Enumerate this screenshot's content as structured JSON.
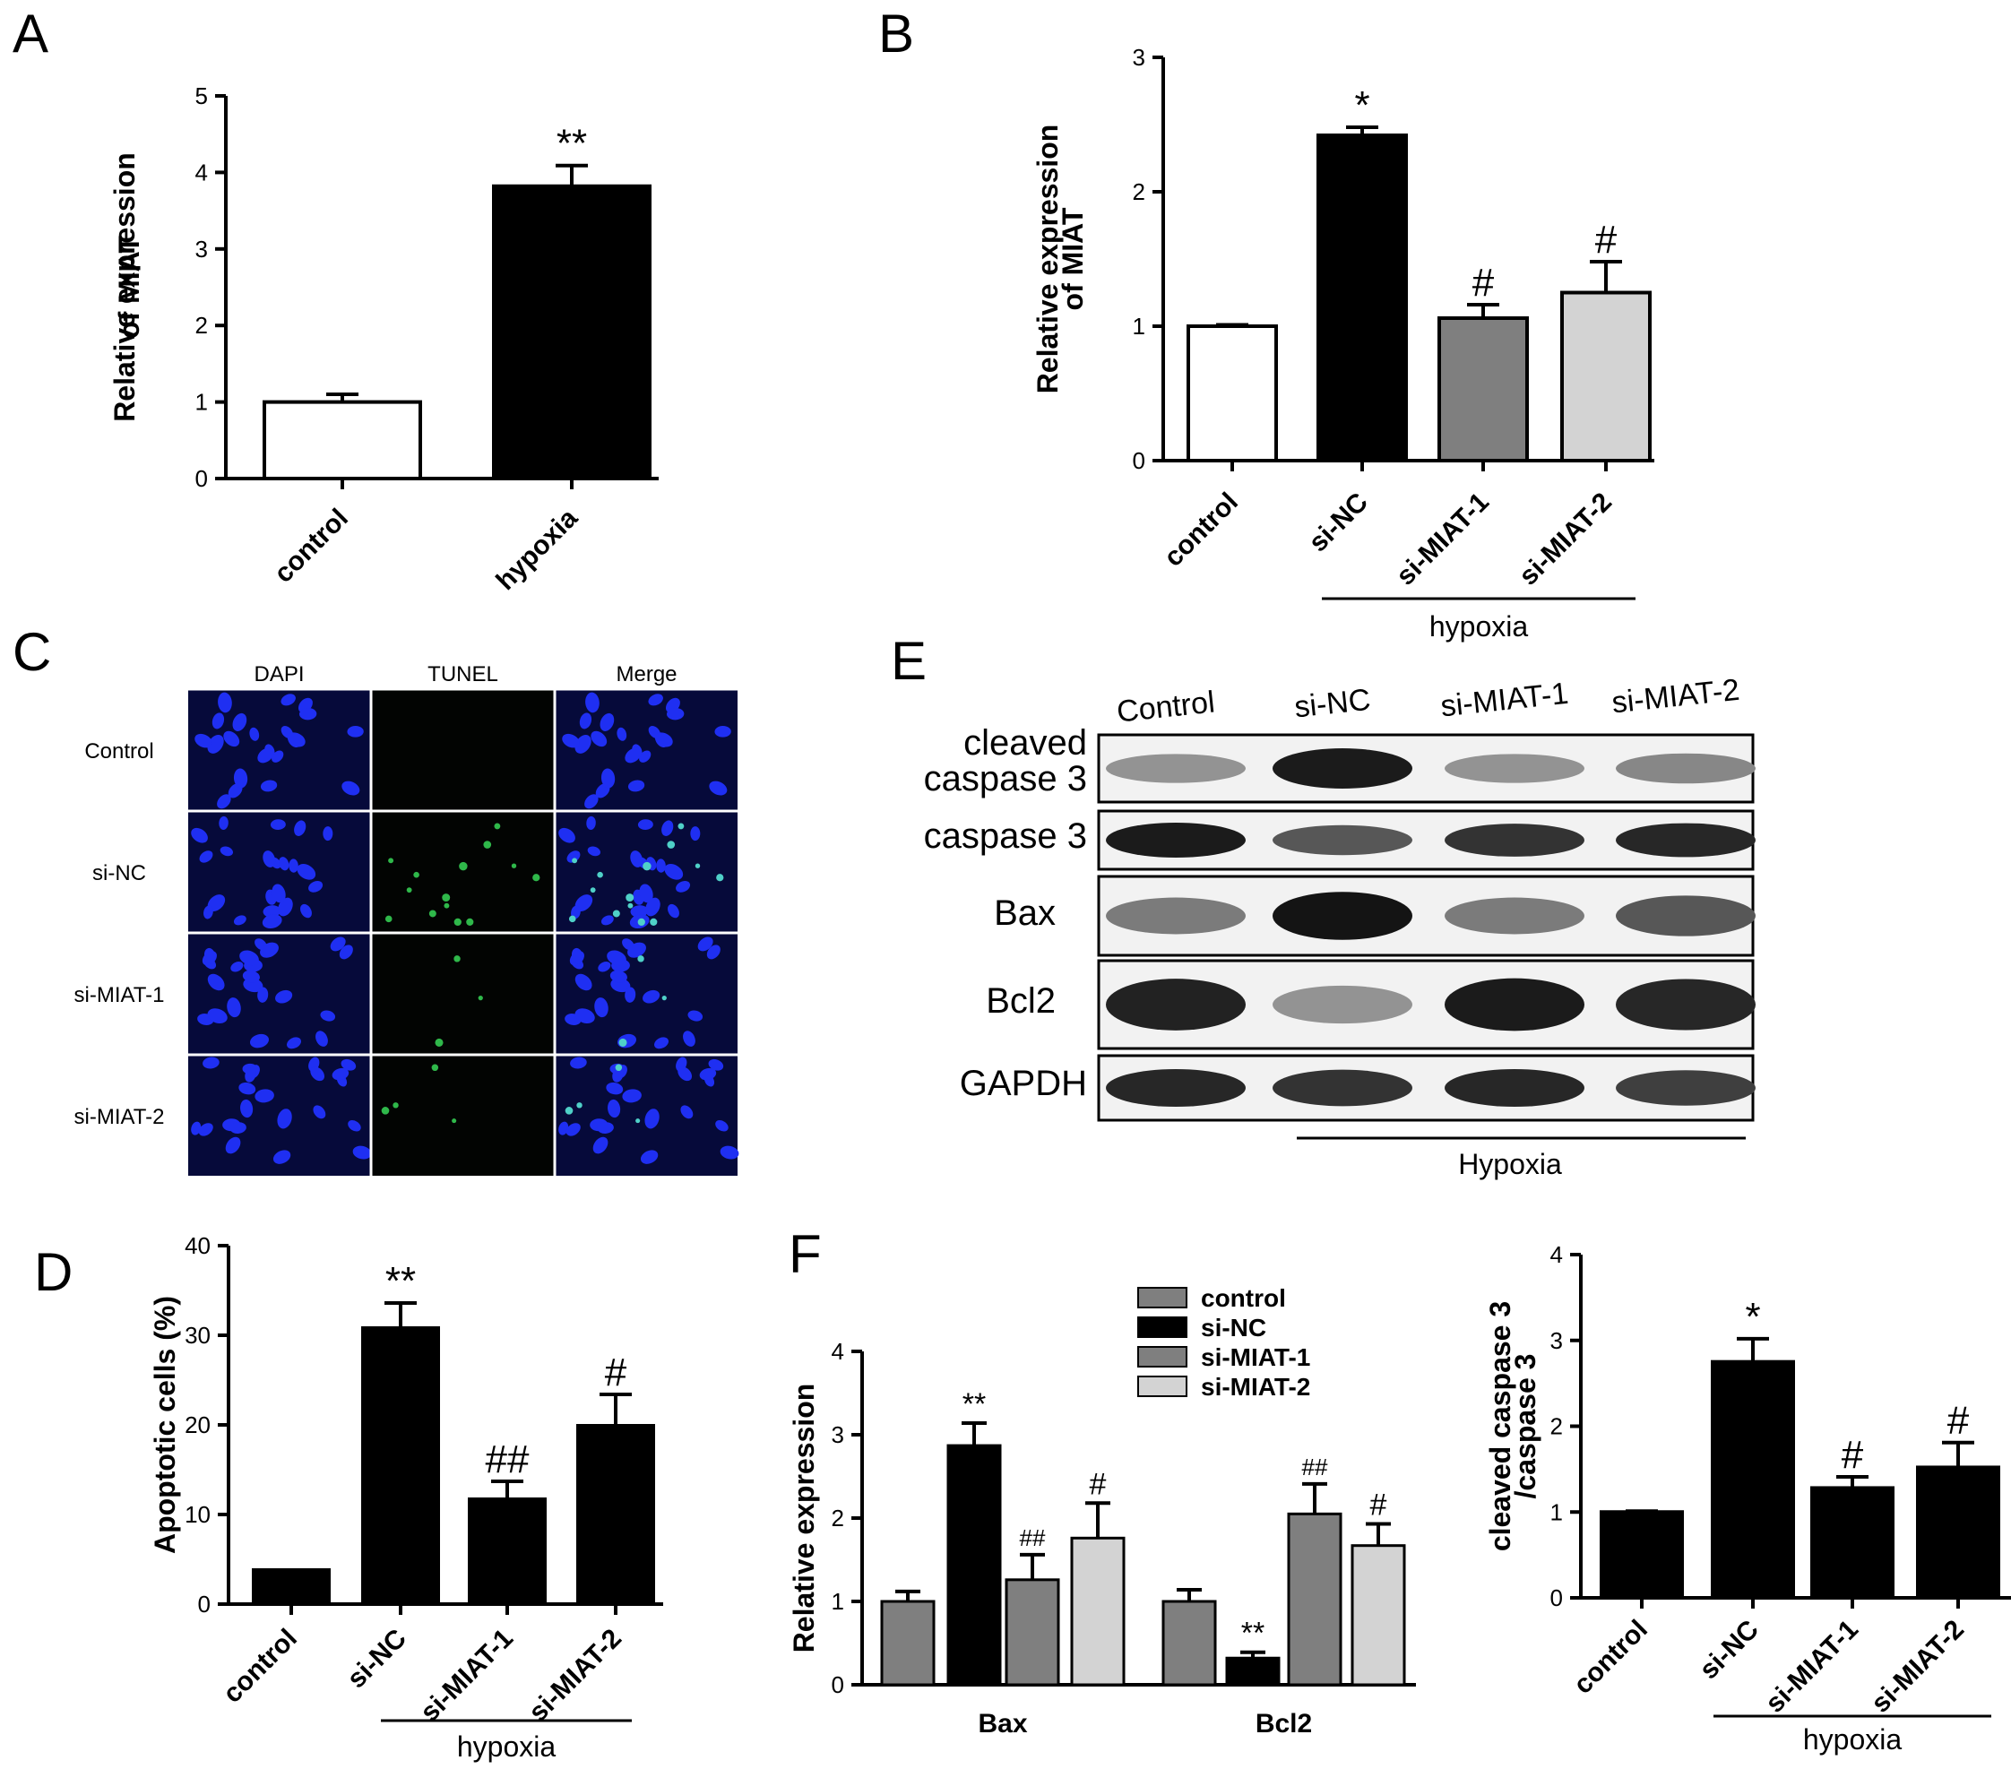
{
  "panels": {
    "A": "A",
    "B": "B",
    "C": "C",
    "D": "D",
    "E": "E",
    "F": "F"
  },
  "chart_data": [
    {
      "id": "A",
      "type": "bar",
      "categories": [
        "control",
        "hypoxia"
      ],
      "values": [
        1.0,
        3.82
      ],
      "errors": [
        0.1,
        0.27
      ],
      "colors": [
        "#ffffff",
        "#000000"
      ],
      "significance": [
        "",
        "**"
      ],
      "ylabel": "Relative expression of MIAT",
      "ylabel_lines": [
        "Relative expression",
        "of MIAT"
      ],
      "ylim": [
        0,
        5
      ],
      "yticks": [
        0,
        1,
        2,
        3,
        4,
        5
      ],
      "group_label": ""
    },
    {
      "id": "B",
      "type": "bar",
      "categories": [
        "control",
        "si-NC",
        "si-MIAT-1",
        "si-MIAT-2"
      ],
      "values": [
        1.0,
        2.42,
        1.06,
        1.25
      ],
      "errors": [
        0.01,
        0.06,
        0.1,
        0.23
      ],
      "colors": [
        "#ffffff",
        "#000000",
        "#7f7f7f",
        "#d3d3d3"
      ],
      "significance": [
        "",
        "*",
        "#",
        "#"
      ],
      "ylabel": "Relative expression of MIAT",
      "ylabel_lines": [
        "Relative expression",
        "of MIAT"
      ],
      "ylim": [
        0,
        3
      ],
      "yticks": [
        0,
        1,
        2,
        3
      ],
      "group_label": "hypoxia",
      "group_span": [
        1,
        3
      ]
    },
    {
      "id": "D",
      "type": "bar",
      "categories": [
        "control",
        "si-NC",
        "si-MIAT-1",
        "si-MIAT-2"
      ],
      "values": [
        3.8,
        30.8,
        11.7,
        19.9
      ],
      "errors": [
        0,
        2.8,
        2.0,
        3.5
      ],
      "colors": [
        "#000000",
        "#000000",
        "#000000",
        "#000000"
      ],
      "significance": [
        "",
        "**",
        "##",
        "#"
      ],
      "ylabel": "Apoptotic cells (%)",
      "ylabel_lines": [
        "Apoptotic cells (%)"
      ],
      "ylim": [
        0,
        40
      ],
      "yticks": [
        0,
        10,
        20,
        30,
        40
      ],
      "group_label": "hypoxia",
      "group_span": [
        1,
        3
      ]
    },
    {
      "id": "F1",
      "type": "bar",
      "categories": [
        "Bax",
        "Bcl2"
      ],
      "series": [
        {
          "name": "control",
          "values": [
            1.0,
            1.0
          ],
          "errors": [
            0.12,
            0.14
          ],
          "color": "#7f7f7f",
          "sig": [
            "",
            ""
          ]
        },
        {
          "name": "si-NC",
          "values": [
            2.87,
            0.32
          ],
          "errors": [
            0.27,
            0.07
          ],
          "color": "#000000",
          "sig": [
            "**",
            "**"
          ]
        },
        {
          "name": "si-MIAT-1",
          "values": [
            1.26,
            2.05
          ],
          "errors": [
            0.3,
            0.36
          ],
          "color": "#7f7f7f",
          "sig": [
            "##",
            "##"
          ]
        },
        {
          "name": "si-MIAT-2",
          "values": [
            1.76,
            1.67
          ],
          "errors": [
            0.42,
            0.26
          ],
          "color": "#d3d3d3",
          "sig": [
            "#",
            "#"
          ]
        }
      ],
      "ylabel": "Relative expression",
      "ylim": [
        0,
        4
      ],
      "yticks": [
        0,
        1,
        2,
        3,
        4
      ],
      "legend_position": "top"
    },
    {
      "id": "F2",
      "type": "bar",
      "categories": [
        "control",
        "si-NC",
        "si-MIAT-1",
        "si-MIAT-2"
      ],
      "values": [
        1.0,
        2.75,
        1.28,
        1.52
      ],
      "errors": [
        0.01,
        0.27,
        0.13,
        0.29
      ],
      "colors": [
        "#000000",
        "#000000",
        "#000000",
        "#000000"
      ],
      "significance": [
        "",
        "*",
        "#",
        "#"
      ],
      "ylabel": "cleaved caspase 3 /caspase 3",
      "ylabel_lines": [
        "cleaved caspase 3",
        "/caspase 3"
      ],
      "ylim": [
        0,
        4
      ],
      "yticks": [
        0,
        1,
        2,
        3,
        4
      ],
      "group_label": "hypoxia",
      "group_span": [
        1,
        3
      ]
    }
  ],
  "tunel": {
    "columns": [
      "DAPI",
      "TUNEL",
      "Merge"
    ],
    "rows": [
      "Control",
      "si-NC",
      "si-MIAT-1",
      "si-MIAT-2"
    ]
  },
  "western": {
    "lanes": [
      "Control",
      "si-NC",
      "si-MIAT-1",
      "si-MIAT-2"
    ],
    "bands": [
      {
        "label_lines": [
          "cleaved",
          "caspase 3"
        ],
        "intensity": [
          0.45,
          0.95,
          0.45,
          0.5
        ]
      },
      {
        "label_lines": [
          "caspase 3"
        ],
        "intensity": [
          0.95,
          0.7,
          0.85,
          0.9
        ]
      },
      {
        "label_lines": [
          "Bax"
        ],
        "intensity": [
          0.55,
          0.98,
          0.55,
          0.7
        ]
      },
      {
        "label_lines": [
          "Bcl2"
        ],
        "intensity": [
          0.92,
          0.45,
          0.95,
          0.9
        ]
      },
      {
        "label_lines": [
          "GAPDH"
        ],
        "intensity": [
          0.9,
          0.85,
          0.9,
          0.8
        ]
      }
    ],
    "group_label": "Hypoxia"
  }
}
